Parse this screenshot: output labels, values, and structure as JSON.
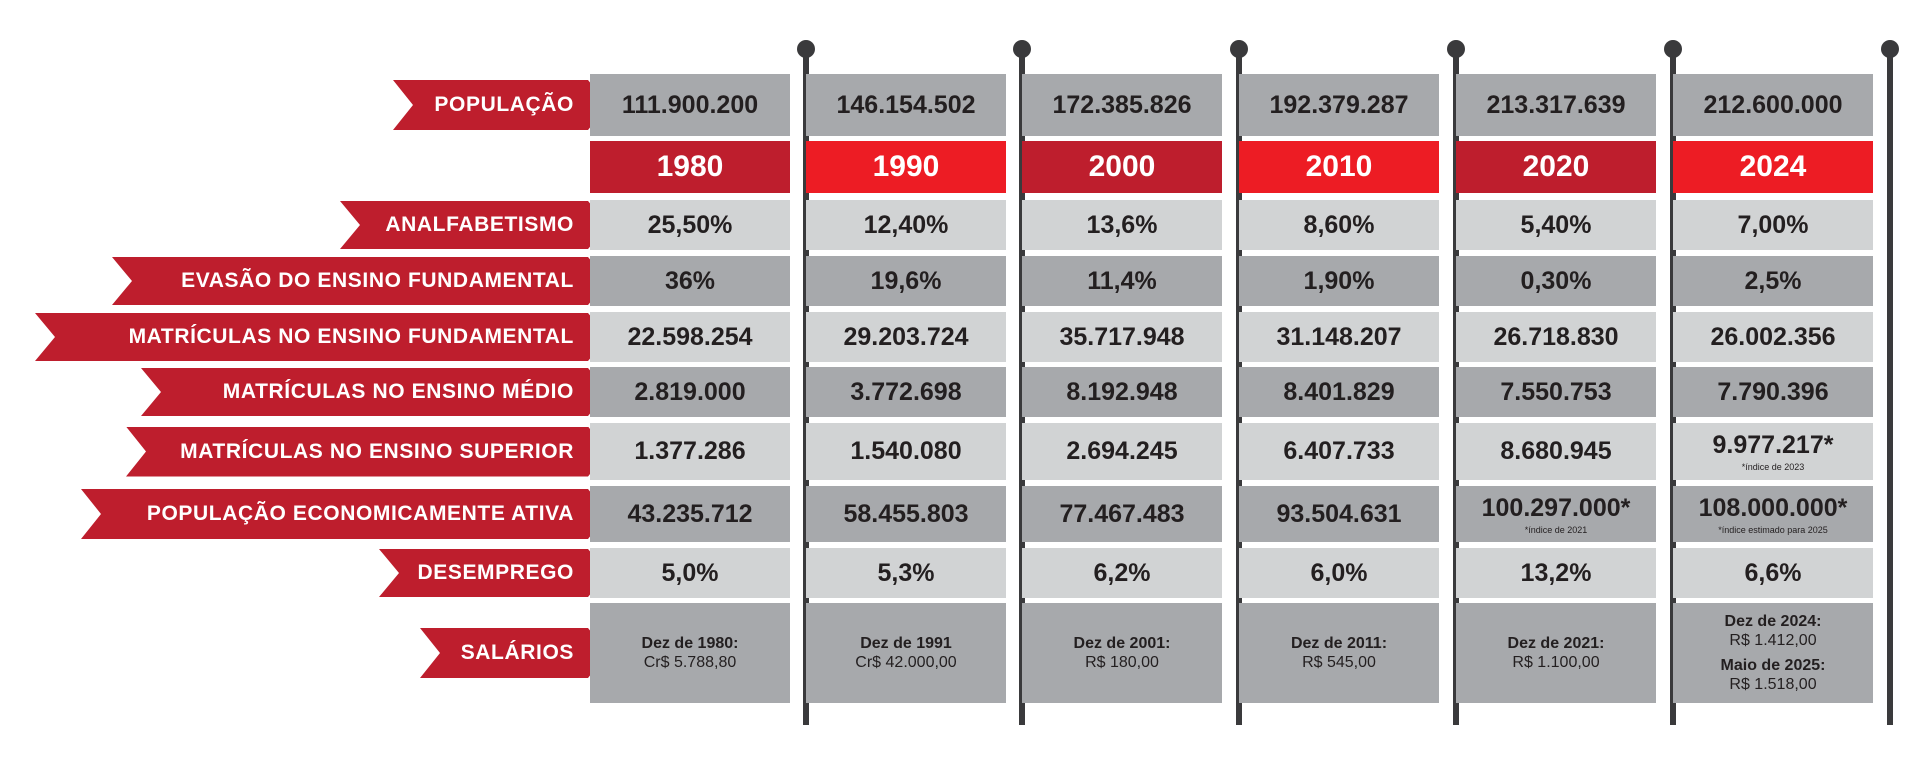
{
  "chart_data": {
    "type": "table",
    "title": "",
    "columns": [
      "1980",
      "1990",
      "2000",
      "2010",
      "2020",
      "2024"
    ],
    "population": [
      "111.900.200",
      "146.154.502",
      "172.385.826",
      "192.379.287",
      "213.317.639",
      "212.600.000"
    ],
    "rows": [
      {
        "label": "ANALFABETISMO",
        "cells": [
          {
            "v": "25,50%"
          },
          {
            "v": "12,40%"
          },
          {
            "v": "13,6%"
          },
          {
            "v": "8,60%"
          },
          {
            "v": "5,40%"
          },
          {
            "v": "7,00%"
          }
        ]
      },
      {
        "label": "EVASÃO DO ENSINO FUNDAMENTAL",
        "cells": [
          {
            "v": "36%"
          },
          {
            "v": "19,6%"
          },
          {
            "v": "11,4%"
          },
          {
            "v": "1,90%"
          },
          {
            "v": "0,30%"
          },
          {
            "v": "2,5%"
          }
        ]
      },
      {
        "label": "MATRÍCULAS NO ENSINO FUNDAMENTAL",
        "cells": [
          {
            "v": "22.598.254"
          },
          {
            "v": "29.203.724"
          },
          {
            "v": "35.717.948"
          },
          {
            "v": "31.148.207"
          },
          {
            "v": "26.718.830"
          },
          {
            "v": "26.002.356"
          }
        ]
      },
      {
        "label": "MATRÍCULAS NO ENSINO MÉDIO",
        "cells": [
          {
            "v": "2.819.000"
          },
          {
            "v": "3.772.698"
          },
          {
            "v": "8.192.948"
          },
          {
            "v": "8.401.829"
          },
          {
            "v": "7.550.753"
          },
          {
            "v": "7.790.396"
          }
        ]
      },
      {
        "label": "MATRÍCULAS NO ENSINO SUPERIOR",
        "cells": [
          {
            "v": "1.377.286"
          },
          {
            "v": "1.540.080"
          },
          {
            "v": "2.694.245"
          },
          {
            "v": "6.407.733"
          },
          {
            "v": "8.680.945"
          },
          {
            "v": "9.977.217*",
            "note": "*índice de 2023"
          }
        ]
      },
      {
        "label": "POPULAÇÃO ECONOMICAMENTE ATIVA",
        "cells": [
          {
            "v": "43.235.712"
          },
          {
            "v": "58.455.803"
          },
          {
            "v": "77.467.483"
          },
          {
            "v": "93.504.631"
          },
          {
            "v": "100.297.000*",
            "note": "*índice de 2021"
          },
          {
            "v": "108.000.000*",
            "note": "*índice estimado para 2025"
          }
        ]
      },
      {
        "label": "DESEMPREGO",
        "cells": [
          {
            "v": "5,0%"
          },
          {
            "v": "5,3%"
          },
          {
            "v": "6,2%"
          },
          {
            "v": "6,0%"
          },
          {
            "v": "13,2%"
          },
          {
            "v": "6,6%"
          }
        ]
      }
    ],
    "salaries": {
      "label": "SALÁRIOS",
      "cells": [
        [
          {
            "d": "Dez de 1980:",
            "v": "Cr$ 5.788,80"
          }
        ],
        [
          {
            "d": "Dez de 1991",
            "v": "Cr$ 42.000,00"
          }
        ],
        [
          {
            "d": "Dez de 2001:",
            "v": "R$ 180,00"
          }
        ],
        [
          {
            "d": "Dez de 2011:",
            "v": "R$ 545,00"
          }
        ],
        [
          {
            "d": "Dez de 2021:",
            "v": "R$ 1.100,00"
          }
        ],
        [
          {
            "d": "Dez de 2024:",
            "v": "R$ 1.412,00"
          },
          {
            "d": "Maio de 2025:",
            "v": "R$ 1.518,00"
          }
        ]
      ]
    }
  },
  "labels": {
    "population": "POPULAÇÃO"
  },
  "colors": {
    "red_dark": "#be1e2d",
    "red_bright": "#ed1c24",
    "grey_dark": "#a7a9ac",
    "grey_light": "#d1d3d4",
    "pole": "#3a3a3c"
  }
}
